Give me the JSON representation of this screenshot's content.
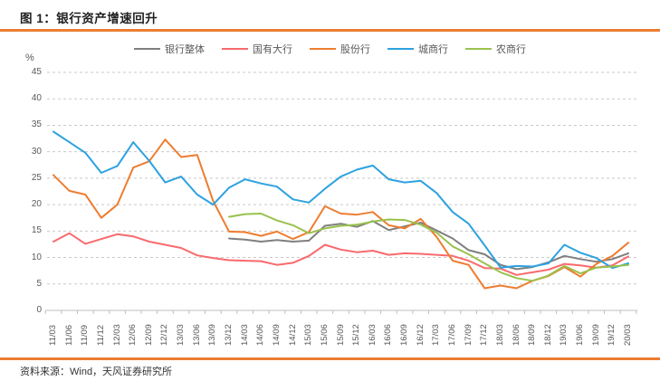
{
  "header": {
    "title": "图 1：银行资产增速回升"
  },
  "footer": {
    "source": "资料来源：Wind，天风证券研究所"
  },
  "colors": {
    "accent_rule": "#ED7D31",
    "grid": "#C9C9C9",
    "axis": "#BFBFBF",
    "tick_text": "#595959",
    "title_text": "#1F1F1F",
    "footer_text": "#333333",
    "background": "#FFFFFF"
  },
  "chart_data": {
    "type": "line",
    "title": "银行资产增速回升",
    "ylabel": "%",
    "xlabel": "",
    "ylim": [
      0,
      45
    ],
    "ytick_step": 5,
    "grid": "dashed-horizontal",
    "legend_position": "top",
    "x_labels": [
      "11/03",
      "11/06",
      "11/09",
      "11/12",
      "12/03",
      "12/06",
      "12/09",
      "12/12",
      "13/03",
      "13/06",
      "13/09",
      "13/12",
      "14/03",
      "14/06",
      "14/09",
      "14/12",
      "15/03",
      "15/06",
      "15/09",
      "15/12",
      "16/03",
      "16/06",
      "16/09",
      "16/12",
      "17/03",
      "17/06",
      "17/09",
      "17/12",
      "18/03",
      "18/06",
      "18/09",
      "18/12",
      "19/03",
      "19/06",
      "19/09",
      "19/12",
      "20/03"
    ],
    "series": [
      {
        "name": "银行整体",
        "color": "#7F7F7F",
        "values": [
          null,
          null,
          null,
          null,
          null,
          null,
          null,
          null,
          null,
          null,
          null,
          13.6,
          13.4,
          13.0,
          13.3,
          13.0,
          13.2,
          16.0,
          16.4,
          15.8,
          16.9,
          15.2,
          15.9,
          16.6,
          15.1,
          13.6,
          11.4,
          10.6,
          8.6,
          7.8,
          8.2,
          9.1,
          10.3,
          9.7,
          9.2,
          9.7,
          10.8
        ]
      },
      {
        "name": "国有大行",
        "color": "#F96A6D",
        "values": [
          13.0,
          14.6,
          12.6,
          13.5,
          14.4,
          14.0,
          13.0,
          12.4,
          11.8,
          10.4,
          9.9,
          9.5,
          9.4,
          9.3,
          8.6,
          9.0,
          10.3,
          12.4,
          11.5,
          11.0,
          11.3,
          10.5,
          10.8,
          10.7,
          10.5,
          10.3,
          9.4,
          8.0,
          7.9,
          6.7,
          7.2,
          7.7,
          8.8,
          8.5,
          8.1,
          8.5,
          10.2
        ]
      },
      {
        "name": "股份行",
        "color": "#ED7D31",
        "values": [
          25.6,
          22.6,
          21.9,
          17.5,
          20.0,
          27.0,
          28.2,
          32.3,
          29.0,
          29.4,
          20.7,
          14.9,
          14.8,
          14.1,
          14.9,
          13.5,
          14.8,
          19.7,
          18.3,
          18.1,
          18.6,
          16.1,
          15.5,
          17.3,
          13.9,
          9.4,
          8.6,
          4.2,
          4.7,
          4.2,
          5.6,
          6.5,
          8.2,
          6.4,
          8.8,
          10.3,
          12.8
        ]
      },
      {
        "name": "城商行",
        "color": "#2DA2E0",
        "values": [
          33.8,
          31.8,
          29.8,
          26.0,
          27.3,
          31.8,
          28.3,
          24.2,
          25.3,
          21.9,
          20.0,
          23.2,
          24.8,
          24.0,
          23.4,
          21.0,
          20.4,
          23.0,
          25.3,
          26.6,
          27.4,
          24.8,
          24.2,
          24.5,
          22.2,
          18.6,
          16.4,
          12.3,
          8.1,
          8.4,
          8.3,
          8.9,
          12.4,
          10.9,
          9.9,
          8.0,
          8.9
        ]
      },
      {
        "name": "农商行",
        "color": "#99C24D",
        "values": [
          null,
          null,
          null,
          null,
          null,
          null,
          null,
          null,
          null,
          null,
          null,
          17.7,
          18.2,
          18.3,
          17.0,
          16.1,
          14.6,
          15.5,
          16.0,
          16.2,
          16.8,
          17.2,
          17.1,
          16.2,
          14.7,
          12.1,
          10.6,
          8.9,
          7.2,
          6.1,
          5.6,
          6.6,
          8.4,
          7.0,
          8.1,
          8.3,
          8.6
        ]
      }
    ]
  }
}
